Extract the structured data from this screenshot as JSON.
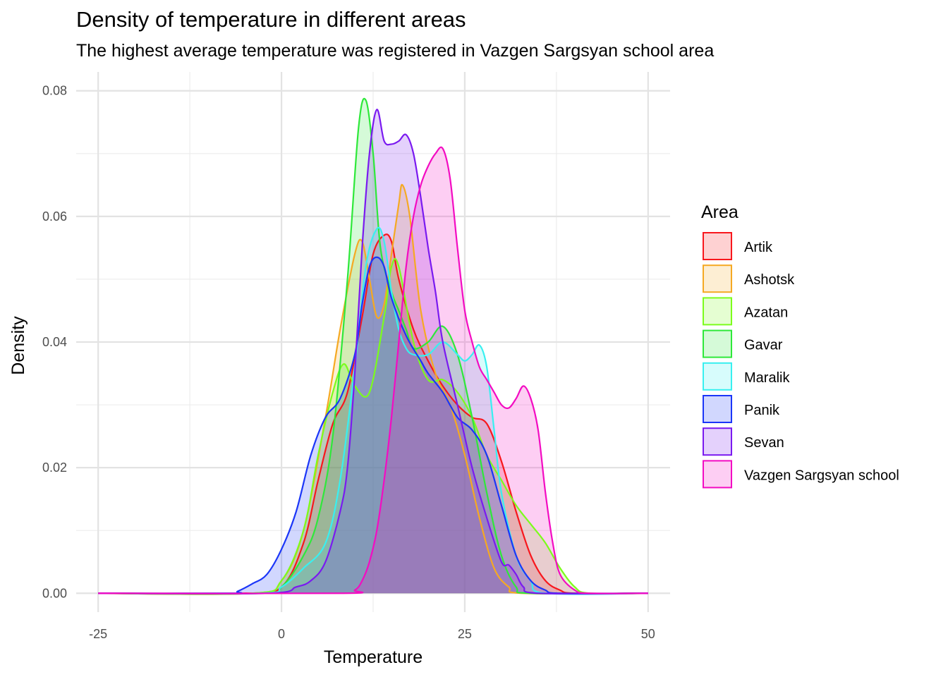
{
  "chart_data": {
    "type": "area",
    "title": "Density of temperature in different areas",
    "subtitle": "The highest average temperature was registered in Vazgen Sargsyan school area",
    "xlabel": "Temperature",
    "ylabel": "Density",
    "xlim": [
      -28,
      53
    ],
    "ylim": [
      -0.003,
      0.083
    ],
    "xticks": [
      -25,
      0,
      25,
      50
    ],
    "xtick_labels": [
      "-25",
      "0",
      "25",
      "50"
    ],
    "yticks": [
      0,
      0.02,
      0.04,
      0.06,
      0.08
    ],
    "ytick_labels": [
      "0.00",
      "0.02",
      "0.04",
      "0.06",
      "0.08"
    ],
    "grid": true,
    "legend": {
      "title": "Area",
      "position": "right"
    },
    "series": [
      {
        "name": "Artik",
        "color": "#F8171D",
        "points": [
          [
            -25,
            0
          ],
          [
            -5,
            0
          ],
          [
            0,
            0.001
          ],
          [
            3,
            0.008
          ],
          [
            5,
            0.018
          ],
          [
            7,
            0.027
          ],
          [
            9,
            0.032
          ],
          [
            11,
            0.044
          ],
          [
            12.5,
            0.054
          ],
          [
            14,
            0.057
          ],
          [
            15,
            0.056
          ],
          [
            16,
            0.05
          ],
          [
            18,
            0.042
          ],
          [
            20,
            0.037
          ],
          [
            22,
            0.033
          ],
          [
            24,
            0.03
          ],
          [
            26,
            0.028
          ],
          [
            28,
            0.027
          ],
          [
            30,
            0.021
          ],
          [
            32,
            0.013
          ],
          [
            34,
            0.006
          ],
          [
            36,
            0.002
          ],
          [
            38,
            0.0005
          ],
          [
            40,
            0
          ],
          [
            50,
            0
          ]
        ]
      },
      {
        "name": "Ashotsk",
        "color": "#F5A923",
        "points": [
          [
            -25,
            0
          ],
          [
            -4,
            0
          ],
          [
            0,
            0.002
          ],
          [
            3,
            0.01
          ],
          [
            6,
            0.028
          ],
          [
            8,
            0.042
          ],
          [
            10,
            0.054
          ],
          [
            11,
            0.056
          ],
          [
            12,
            0.05
          ],
          [
            13,
            0.044
          ],
          [
            14,
            0.046
          ],
          [
            15,
            0.054
          ],
          [
            16,
            0.062
          ],
          [
            16.5,
            0.065
          ],
          [
            17.5,
            0.06
          ],
          [
            19,
            0.045
          ],
          [
            21,
            0.035
          ],
          [
            23,
            0.03
          ],
          [
            25,
            0.022
          ],
          [
            27,
            0.012
          ],
          [
            29,
            0.004
          ],
          [
            31,
            0.001
          ],
          [
            33,
            0
          ],
          [
            50,
            0
          ]
        ]
      },
      {
        "name": "Azatan",
        "color": "#7CFC1C",
        "points": [
          [
            -25,
            0
          ],
          [
            -4,
            0
          ],
          [
            0,
            0.002
          ],
          [
            3,
            0.01
          ],
          [
            5,
            0.022
          ],
          [
            7,
            0.032
          ],
          [
            8.5,
            0.0365
          ],
          [
            10,
            0.033
          ],
          [
            12,
            0.032
          ],
          [
            14,
            0.044
          ],
          [
            15,
            0.052
          ],
          [
            16,
            0.052
          ],
          [
            18,
            0.04
          ],
          [
            20,
            0.034
          ],
          [
            22,
            0.034
          ],
          [
            24,
            0.032
          ],
          [
            26,
            0.028
          ],
          [
            28,
            0.022
          ],
          [
            30,
            0.018
          ],
          [
            32,
            0.014
          ],
          [
            34,
            0.011
          ],
          [
            36,
            0.008
          ],
          [
            38,
            0.004
          ],
          [
            40,
            0.001
          ],
          [
            42,
            0
          ],
          [
            50,
            0
          ]
        ]
      },
      {
        "name": "Gavar",
        "color": "#2EE83A",
        "points": [
          [
            -25,
            0
          ],
          [
            -3,
            0
          ],
          [
            0,
            0.001
          ],
          [
            3,
            0.006
          ],
          [
            5,
            0.012
          ],
          [
            7,
            0.025
          ],
          [
            9,
            0.05
          ],
          [
            10.5,
            0.074
          ],
          [
            11.5,
            0.0785
          ],
          [
            12.5,
            0.07
          ],
          [
            13.5,
            0.055
          ],
          [
            15,
            0.048
          ],
          [
            16,
            0.045
          ],
          [
            17,
            0.042
          ],
          [
            18,
            0.039
          ],
          [
            20,
            0.04
          ],
          [
            22,
            0.0425
          ],
          [
            24,
            0.038
          ],
          [
            26,
            0.028
          ],
          [
            28,
            0.016
          ],
          [
            30,
            0.006
          ],
          [
            32,
            0.001
          ],
          [
            34,
            0
          ],
          [
            50,
            0
          ]
        ]
      },
      {
        "name": "Maralik",
        "color": "#38F0F0",
        "points": [
          [
            -25,
            0
          ],
          [
            -3,
            0
          ],
          [
            0,
            0.001
          ],
          [
            3,
            0.004
          ],
          [
            6,
            0.008
          ],
          [
            8,
            0.018
          ],
          [
            10,
            0.036
          ],
          [
            11.5,
            0.052
          ],
          [
            13,
            0.058
          ],
          [
            14,
            0.056
          ],
          [
            15,
            0.048
          ],
          [
            16,
            0.042
          ],
          [
            17,
            0.039
          ],
          [
            18,
            0.038
          ],
          [
            20,
            0.038
          ],
          [
            22,
            0.04
          ],
          [
            24,
            0.038
          ],
          [
            25,
            0.037
          ],
          [
            26,
            0.038
          ],
          [
            27,
            0.0395
          ],
          [
            28,
            0.036
          ],
          [
            29,
            0.026
          ],
          [
            30,
            0.016
          ],
          [
            32,
            0.006
          ],
          [
            34,
            0.002
          ],
          [
            36,
            0
          ],
          [
            50,
            0
          ]
        ]
      },
      {
        "name": "Panik",
        "color": "#1B36F8",
        "points": [
          [
            -25,
            0
          ],
          [
            -7,
            0
          ],
          [
            -6,
            0.0003
          ],
          [
            -4,
            0.0015
          ],
          [
            -2,
            0.003
          ],
          [
            0,
            0.007
          ],
          [
            2,
            0.013
          ],
          [
            4,
            0.022
          ],
          [
            6,
            0.028
          ],
          [
            8,
            0.031
          ],
          [
            10,
            0.038
          ],
          [
            11,
            0.046
          ],
          [
            12,
            0.052
          ],
          [
            13,
            0.0535
          ],
          [
            14,
            0.052
          ],
          [
            15,
            0.047
          ],
          [
            17,
            0.041
          ],
          [
            19,
            0.037
          ],
          [
            20,
            0.035
          ],
          [
            22,
            0.032
          ],
          [
            24,
            0.028
          ],
          [
            26,
            0.026
          ],
          [
            28,
            0.022
          ],
          [
            30,
            0.014
          ],
          [
            32,
            0.006
          ],
          [
            34,
            0.002
          ],
          [
            36,
            0.0005
          ],
          [
            38,
            0
          ],
          [
            50,
            0
          ]
        ]
      },
      {
        "name": "Sevan",
        "color": "#7A1AF0",
        "points": [
          [
            -25,
            0
          ],
          [
            -2,
            0
          ],
          [
            2,
            0.001
          ],
          [
            4,
            0.002
          ],
          [
            6,
            0.005
          ],
          [
            8,
            0.013
          ],
          [
            9,
            0.02
          ],
          [
            10,
            0.035
          ],
          [
            11,
            0.055
          ],
          [
            12,
            0.07
          ],
          [
            13,
            0.077
          ],
          [
            14,
            0.072
          ],
          [
            15,
            0.0715
          ],
          [
            16,
            0.072
          ],
          [
            17,
            0.073
          ],
          [
            18,
            0.07
          ],
          [
            19,
            0.063
          ],
          [
            20,
            0.055
          ],
          [
            21,
            0.048
          ],
          [
            22,
            0.04
          ],
          [
            24,
            0.03
          ],
          [
            26,
            0.02
          ],
          [
            28,
            0.012
          ],
          [
            30,
            0.005
          ],
          [
            31,
            0.0045
          ],
          [
            32,
            0.003
          ],
          [
            33,
            0.001
          ],
          [
            35,
            0
          ],
          [
            50,
            0
          ]
        ]
      },
      {
        "name": "Vazgen Sargsyan school",
        "color": "#F30CC2",
        "points": [
          [
            -25,
            0
          ],
          [
            8,
            0
          ],
          [
            10,
            0.0005
          ],
          [
            11,
            0.002
          ],
          [
            12,
            0.005
          ],
          [
            13,
            0.01
          ],
          [
            14,
            0.018
          ],
          [
            15,
            0.028
          ],
          [
            16,
            0.04
          ],
          [
            17,
            0.052
          ],
          [
            18,
            0.06
          ],
          [
            19,
            0.065
          ],
          [
            20,
            0.068
          ],
          [
            21,
            0.07
          ],
          [
            22,
            0.0708
          ],
          [
            23,
            0.066
          ],
          [
            24,
            0.055
          ],
          [
            25,
            0.045
          ],
          [
            26,
            0.04
          ],
          [
            27,
            0.036
          ],
          [
            28,
            0.034
          ],
          [
            29,
            0.032
          ],
          [
            30,
            0.03
          ],
          [
            31,
            0.0295
          ],
          [
            32,
            0.031
          ],
          [
            33,
            0.033
          ],
          [
            34,
            0.031
          ],
          [
            35,
            0.026
          ],
          [
            36,
            0.016
          ],
          [
            37,
            0.008
          ],
          [
            38,
            0.003
          ],
          [
            40,
            0.0005
          ],
          [
            42,
            0
          ],
          [
            50,
            0
          ]
        ]
      }
    ]
  }
}
